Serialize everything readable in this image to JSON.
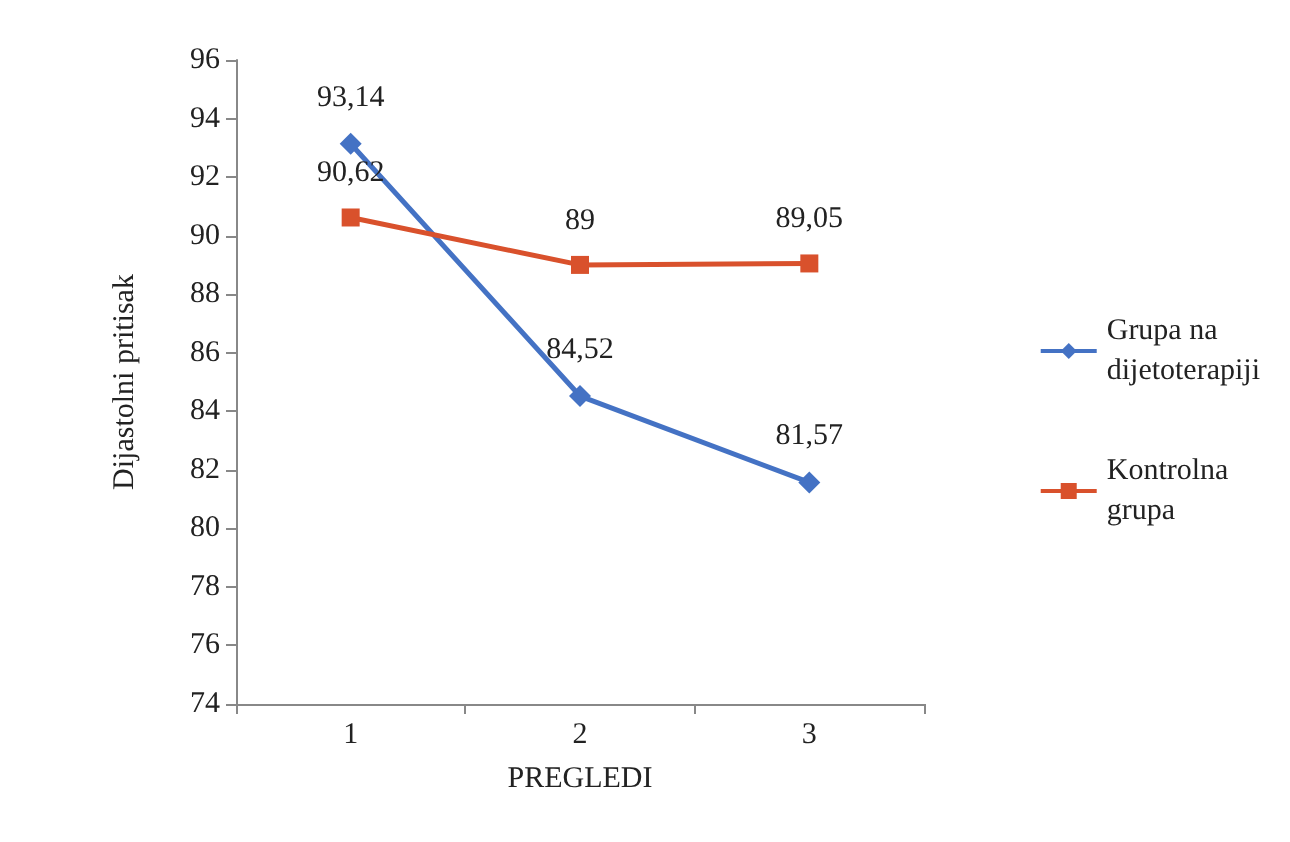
{
  "chart_data": {
    "type": "line",
    "xlabel": "PREGLEDI",
    "ylabel": "Dijastolni pritisak",
    "categories": [
      "1",
      "2",
      "3"
    ],
    "series": [
      {
        "name": "Grupa na\ndijetoterapiji",
        "color": "#4472c4",
        "marker": "diamond",
        "values": [
          93.14,
          84.52,
          81.57
        ],
        "value_labels": [
          "93,14",
          "84,52",
          "81,57"
        ]
      },
      {
        "name": "Kontrolna\ngrupa",
        "color": "#d9512c",
        "marker": "square",
        "values": [
          90.62,
          89,
          89.05
        ],
        "value_labels": [
          "90,62",
          "89",
          "89,05"
        ]
      }
    ],
    "ylim": [
      74,
      96
    ],
    "yticks": [
      74,
      76,
      78,
      80,
      82,
      84,
      86,
      88,
      90,
      92,
      94,
      96
    ],
    "grid": false,
    "legend": "right"
  }
}
